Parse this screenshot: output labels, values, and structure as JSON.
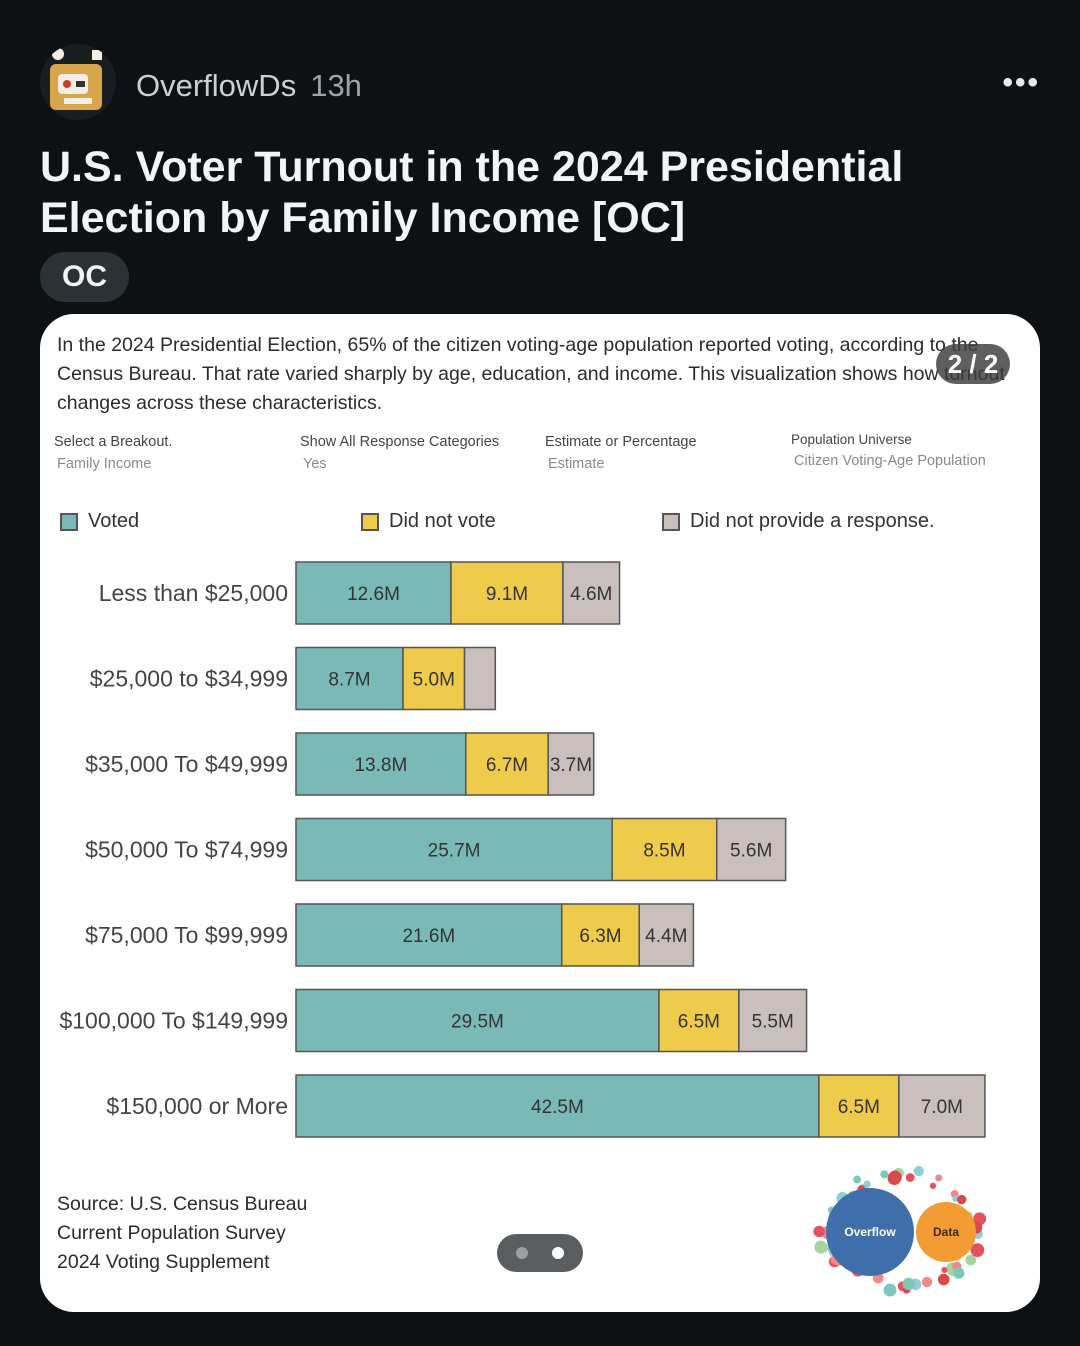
{
  "post": {
    "author": "OverflowDs",
    "time": "13h",
    "more_icon": "more-icon",
    "title": "U.S. Voter Turnout in the 2024 Presidential Election by Family Income [OC]",
    "flair": "OC"
  },
  "carousel": {
    "counter": "2 / 2",
    "current": 2,
    "total": 2
  },
  "infographic": {
    "intro": "In the 2024 Presidential Election, 65% of the citizen voting-age population reported voting, according to the Census Bureau. That rate varied sharply by age, education, and income. This visualization shows how turnout changes across these characteristics.",
    "filters": [
      {
        "label": "Select a Breakout.",
        "value": "Family Income"
      },
      {
        "label": "Show All Response Categories",
        "value": "Yes"
      },
      {
        "label": "Estimate or Percentage",
        "value": "Estimate"
      },
      {
        "label": "Population Universe",
        "value": "Citizen Voting-Age Population"
      }
    ],
    "source": [
      "Source: U.S. Census Bureau",
      "Current Population Survey",
      "2024 Voting Supplement"
    ],
    "logo_text": {
      "left": "Overflow",
      "right": "Data"
    }
  },
  "colors": {
    "voted": "#79bab6",
    "did_not_vote": "#efcb4c",
    "no_response": "#c9bfbd",
    "logo_blue": "#3f6fab",
    "logo_orange": "#f29c33"
  },
  "chart_data": {
    "type": "bar",
    "orientation": "horizontal",
    "stacked": true,
    "unit": "M",
    "categories": [
      "Less than $25,000",
      "$25,000 to $34,999",
      "$35,000 To $49,999",
      "$50,000 To $74,999",
      "$75,000 To $99,999",
      "$100,000 To $149,999",
      "$150,000 or More"
    ],
    "series": [
      {
        "name": "Voted",
        "values": [
          12.6,
          8.7,
          13.8,
          25.7,
          21.6,
          29.5,
          42.5
        ],
        "labels": [
          "12.6M",
          "8.7M",
          "13.8M",
          "25.7M",
          "21.6M",
          "29.5M",
          "42.5M"
        ]
      },
      {
        "name": "Did not vote",
        "values": [
          9.1,
          5.0,
          6.7,
          8.5,
          6.3,
          6.5,
          6.5
        ],
        "labels": [
          "9.1M",
          "5.0M",
          "6.7M",
          "8.5M",
          "6.3M",
          "6.5M",
          "6.5M"
        ]
      },
      {
        "name": "Did not provide a response.",
        "values": [
          4.6,
          2.5,
          3.7,
          5.6,
          4.4,
          5.5,
          7.0
        ],
        "labels": [
          "4.6M",
          "",
          "3.7M",
          "5.6M",
          "4.4M",
          "5.5M",
          "7.0M"
        ]
      }
    ],
    "xlim": [
      0,
      56.9
    ]
  }
}
